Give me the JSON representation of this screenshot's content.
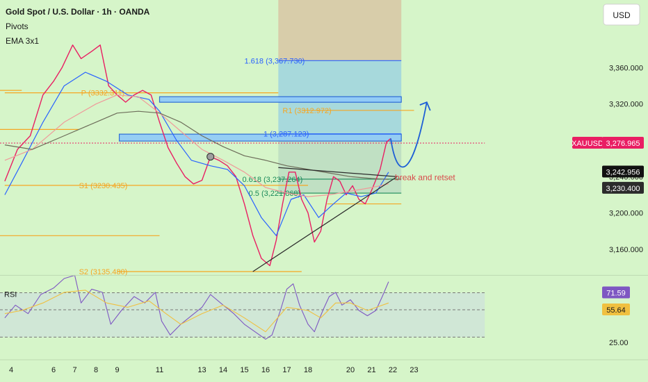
{
  "header": {
    "title": "Gold Spot / U.S. Dollar · 1h · OANDA",
    "indicators": [
      "Pivots",
      "EMA 3x1"
    ],
    "currency_button": "USD"
  },
  "chart_data": [
    {
      "type": "line",
      "title": "Gold Spot / U.S. Dollar · 1h · OANDA",
      "symbol": "XAUUSD",
      "x_ticks": [
        "4",
        "6",
        "7",
        "8",
        "9",
        "11",
        "13",
        "14",
        "15",
        "16",
        "17",
        "18",
        "20",
        "21",
        "22",
        "23"
      ],
      "y_ticks": [
        3160,
        3200,
        3240,
        3280,
        3320,
        3360
      ],
      "y_tick_labels": [
        "3,160.000",
        "3,200.000",
        "3,240.000",
        "3,280.000",
        "3,320.000",
        "3,360.000"
      ],
      "ylim": [
        3122,
        3400
      ],
      "series": [
        {
          "color": "#e91e63",
          "points": [
            [
              3.7,
              3235
            ],
            [
              4.3,
              3270
            ],
            [
              4.9,
              3285
            ],
            [
              5.5,
              3330
            ],
            [
              6.0,
              3345
            ],
            [
              6.4,
              3360
            ],
            [
              6.9,
              3385
            ],
            [
              7.3,
              3370
            ],
            [
              7.8,
              3378
            ],
            [
              8.2,
              3385
            ],
            [
              8.6,
              3340
            ],
            [
              9.0,
              3330
            ],
            [
              9.4,
              3322
            ],
            [
              9.8,
              3330
            ],
            [
              10.2,
              3335
            ],
            [
              10.6,
              3330
            ],
            [
              11.0,
              3300
            ],
            [
              11.4,
              3272
            ],
            [
              11.8,
              3255
            ],
            [
              12.2,
              3240
            ],
            [
              12.6,
              3232
            ],
            [
              13.0,
              3236
            ],
            [
              13.4,
              3262
            ],
            [
              13.8,
              3258
            ],
            [
              14.2,
              3252
            ],
            [
              14.6,
              3240
            ],
            [
              15.0,
              3210
            ],
            [
              15.4,
              3175
            ],
            [
              15.8,
              3150
            ],
            [
              16.2,
              3142
            ],
            [
              16.5,
              3170
            ],
            [
              16.8,
              3210
            ],
            [
              17.1,
              3245
            ],
            [
              17.4,
              3245
            ],
            [
              17.7,
              3215
            ],
            [
              18.0,
              3200
            ],
            [
              18.3,
              3168
            ],
            [
              18.6,
              3180
            ],
            [
              18.9,
              3215
            ],
            [
              19.2,
              3240
            ],
            [
              19.5,
              3235
            ],
            [
              19.8,
              3220
            ],
            [
              20.1,
              3230
            ],
            [
              20.4,
              3215
            ],
            [
              20.7,
              3210
            ],
            [
              21.0,
              3225
            ],
            [
              21.4,
              3248
            ],
            [
              21.7,
              3278
            ],
            [
              21.9,
              3282
            ]
          ]
        },
        {
          "color": "#2962ff",
          "points": [
            [
              3.7,
              3220
            ],
            [
              4.5,
              3255
            ],
            [
              5.5,
              3300
            ],
            [
              6.5,
              3340
            ],
            [
              7.5,
              3355
            ],
            [
              8.5,
              3345
            ],
            [
              9.5,
              3330
            ],
            [
              10.5,
              3325
            ],
            [
              11.0,
              3312
            ],
            [
              11.8,
              3280
            ],
            [
              12.5,
              3258
            ],
            [
              13.4,
              3252
            ],
            [
              14.2,
              3248
            ],
            [
              15.0,
              3230
            ],
            [
              15.8,
              3195
            ],
            [
              16.5,
              3175
            ],
            [
              17.2,
              3215
            ],
            [
              17.8,
              3220
            ],
            [
              18.5,
              3195
            ],
            [
              19.2,
              3210
            ],
            [
              19.8,
              3222
            ],
            [
              20.5,
              3218
            ],
            [
              21.2,
              3222
            ],
            [
              21.8,
              3245
            ]
          ]
        },
        {
          "color": "#ef9a9a",
          "points": [
            [
              3.7,
              3258
            ],
            [
              5.0,
              3270
            ],
            [
              6.5,
              3300
            ],
            [
              8.0,
              3320
            ],
            [
              9.0,
              3330
            ],
            [
              10.0,
              3328
            ],
            [
              11.0,
              3310
            ],
            [
              12.0,
              3290
            ],
            [
              13.0,
              3270
            ],
            [
              14.0,
              3258
            ],
            [
              15.0,
              3245
            ],
            [
              16.0,
              3228
            ],
            [
              17.0,
              3222
            ],
            [
              18.0,
              3218
            ],
            [
              19.0,
              3220
            ],
            [
              20.0,
              3224
            ],
            [
              21.0,
              3228
            ],
            [
              21.8,
              3232
            ]
          ]
        },
        {
          "color": "#6d6d5a",
          "points": [
            [
              3.7,
              3275
            ],
            [
              5.0,
              3270
            ],
            [
              6.5,
              3285
            ],
            [
              8.0,
              3300
            ],
            [
              9.0,
              3310
            ],
            [
              10.0,
              3312
            ],
            [
              11.0,
              3310
            ],
            [
              12.0,
              3300
            ],
            [
              13.0,
              3285
            ],
            [
              14.0,
              3273
            ],
            [
              15.0,
              3263
            ],
            [
              16.0,
              3258
            ],
            [
              17.0,
              3252
            ],
            [
              18.0,
              3248
            ],
            [
              19.0,
              3244
            ],
            [
              20.0,
              3240
            ],
            [
              21.0,
              3238
            ],
            [
              21.8,
              3237
            ]
          ]
        }
      ],
      "levels": [
        {
          "label": "P (3332.311)",
          "value": 3332.311,
          "color": "#f5a623"
        },
        {
          "label": "R1 (3312.972)",
          "value": 3312.972,
          "color": "#f5a623"
        },
        {
          "label": "S1 (3230.435)",
          "value": 3230.435,
          "color": "#f5a623"
        },
        {
          "label": "S2 (3135.480)",
          "value": 3135.48,
          "color": "#f5a623"
        },
        {
          "label": "1.618 (3,367.730)",
          "value": 3367.73,
          "color": "#2962ff"
        },
        {
          "label": "1 (3,287.123)",
          "value": 3287.123,
          "color": "#2962ff"
        },
        {
          "label": "0.618 (3,237.264)",
          "value": 3237.264,
          "color": "#1b8a5a"
        },
        {
          "label": "0.5 (3,221.868)",
          "value": 3221.868,
          "color": "#1b8a5a"
        }
      ],
      "annotations": [
        "break and retset"
      ],
      "price_labels": [
        {
          "text": "XAUUSD",
          "value": 3276.965,
          "color": "#e91e63"
        },
        {
          "text": "3,276.965",
          "value": 3276.965,
          "color": "#e91e63"
        },
        {
          "text": "3,242.956",
          "value": 3242.956,
          "color": "#111111"
        },
        {
          "text": "3,230.400",
          "value": 3230.4,
          "color": "#2b2b2b"
        }
      ]
    },
    {
      "type": "line",
      "title": "RSI",
      "y_ticks": [
        25
      ],
      "y_tick_labels": [
        "25.00"
      ],
      "ylim": [
        20,
        95
      ],
      "series": [
        {
          "color": "#7e57c2",
          "points": [
            [
              3.7,
              48
            ],
            [
              4.2,
              60
            ],
            [
              4.8,
              52
            ],
            [
              5.4,
              70
            ],
            [
              6.0,
              76
            ],
            [
              6.5,
              85
            ],
            [
              7.0,
              88
            ],
            [
              7.3,
              62
            ],
            [
              7.8,
              75
            ],
            [
              8.3,
              72
            ],
            [
              8.7,
              42
            ],
            [
              9.2,
              55
            ],
            [
              9.8,
              68
            ],
            [
              10.3,
              62
            ],
            [
              10.8,
              72
            ],
            [
              11.1,
              45
            ],
            [
              11.5,
              32
            ],
            [
              12.0,
              42
            ],
            [
              12.5,
              50
            ],
            [
              13.0,
              58
            ],
            [
              13.4,
              70
            ],
            [
              14.0,
              60
            ],
            [
              14.5,
              52
            ],
            [
              15.0,
              42
            ],
            [
              15.5,
              35
            ],
            [
              16.0,
              28
            ],
            [
              16.3,
              32
            ],
            [
              16.7,
              55
            ],
            [
              17.0,
              75
            ],
            [
              17.3,
              80
            ],
            [
              17.6,
              60
            ],
            [
              18.0,
              42
            ],
            [
              18.3,
              35
            ],
            [
              18.7,
              55
            ],
            [
              19.0,
              68
            ],
            [
              19.3,
              72
            ],
            [
              19.6,
              60
            ],
            [
              20.0,
              65
            ],
            [
              20.4,
              55
            ],
            [
              20.8,
              50
            ],
            [
              21.2,
              55
            ],
            [
              21.5,
              68
            ],
            [
              21.8,
              82
            ]
          ]
        },
        {
          "color": "#f0c040",
          "points": [
            [
              3.7,
              52
            ],
            [
              4.5,
              55
            ],
            [
              5.5,
              62
            ],
            [
              6.5,
              72
            ],
            [
              7.5,
              74
            ],
            [
              8.5,
              62
            ],
            [
              9.5,
              58
            ],
            [
              10.5,
              64
            ],
            [
              11.3,
              52
            ],
            [
              12.0,
              42
            ],
            [
              13.0,
              52
            ],
            [
              14.0,
              60
            ],
            [
              15.0,
              48
            ],
            [
              16.0,
              35
            ],
            [
              17.0,
              58
            ],
            [
              18.0,
              55
            ],
            [
              18.6,
              48
            ],
            [
              19.3,
              62
            ],
            [
              20.0,
              62
            ],
            [
              20.8,
              55
            ],
            [
              21.8,
              62
            ]
          ]
        }
      ],
      "levels": [
        71.59,
        55.64,
        30
      ],
      "value_labels": [
        {
          "text": "71.59",
          "value": 71.59,
          "color": "#7e57c2"
        },
        {
          "text": "55.64",
          "value": 55.64,
          "color": "#f0c040"
        }
      ]
    }
  ]
}
